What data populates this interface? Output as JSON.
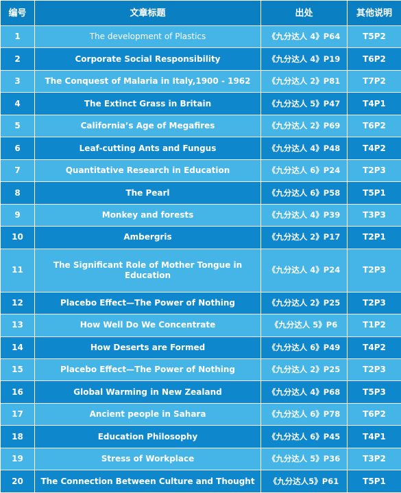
{
  "headers": [
    "编号",
    "文章标题",
    "出处",
    "其他说明"
  ],
  "rows": [
    {
      "no": "1",
      "title": "The development of Plastics",
      "source": "《九分达人 4》P64",
      "note": "T5P2"
    },
    {
      "no": "2",
      "title": "Corporate Social Responsibility",
      "source": "《九分达人 4》P19",
      "note": "T6P2"
    },
    {
      "no": "3",
      "title": "The Conquest of Malaria in Italy,1900 - 1962",
      "source": "《九分达人 2》P81",
      "note": "T7P2"
    },
    {
      "no": "4",
      "title": "The Extinct Grass in Britain",
      "source": "《九分达人 5》P47",
      "note": "T4P1"
    },
    {
      "no": "5",
      "title": "California’s Age of Megafires",
      "source": "《九分达人 2》P69",
      "note": "T6P2"
    },
    {
      "no": "6",
      "title": "Leaf-cutting Ants and Fungus",
      "source": "《九分达人 4》P48",
      "note": "T4P2"
    },
    {
      "no": "7",
      "title": "Quantitative Research in Education",
      "source": "《九分达人 6》P24",
      "note": "T2P3"
    },
    {
      "no": "8",
      "title": "The Pearl",
      "source": "《九分达人 6》P58",
      "note": "T5P1"
    },
    {
      "no": "9",
      "title": "Monkey and forests",
      "source": "《九分达人 4》P39",
      "note": "T3P3"
    },
    {
      "no": "10",
      "title": "Ambergris",
      "source": "《九分达人 2》P17",
      "note": "T2P1"
    },
    {
      "no": "11",
      "title": "The Significant Role of Mother Tongue in Education",
      "source": "《九分达人 4》P24",
      "note": "T2P3"
    },
    {
      "no": "12",
      "title": "Placebo Effect—The Power of Nothing",
      "source": "《九分达人 2》P25",
      "note": "T2P3"
    },
    {
      "no": "13",
      "title": "How Well Do We Concentrate",
      "source": "《九分达人 5》P6",
      "note": "T1P2"
    },
    {
      "no": "14",
      "title": "How Deserts are Formed",
      "source": "《九分达人 6》P49",
      "note": "T4P2"
    },
    {
      "no": "15",
      "title": "Placebo Effect—The Power of Nothing",
      "source": "《九分达人 2》P25",
      "note": "T2P3"
    },
    {
      "no": "16",
      "title": "Global Warming in New Zealand",
      "source": "《九分达人 4》P68",
      "note": "T5P3"
    },
    {
      "no": "17",
      "title": "Ancient people in Sahara",
      "source": "《九分达人 6》P78",
      "note": "T6P2"
    },
    {
      "no": "18",
      "title": "Education Philosophy",
      "source": "《九分达人 6》P45",
      "note": "T4P1"
    },
    {
      "no": "19",
      "title": "Stress of Workplace",
      "source": "《九分达人 5》P36",
      "note": "T3P2"
    },
    {
      "no": "20",
      "title": "The Connection Between Culture and Thought",
      "source": "《九分达人5》P61",
      "note": "T5P1"
    }
  ]
}
